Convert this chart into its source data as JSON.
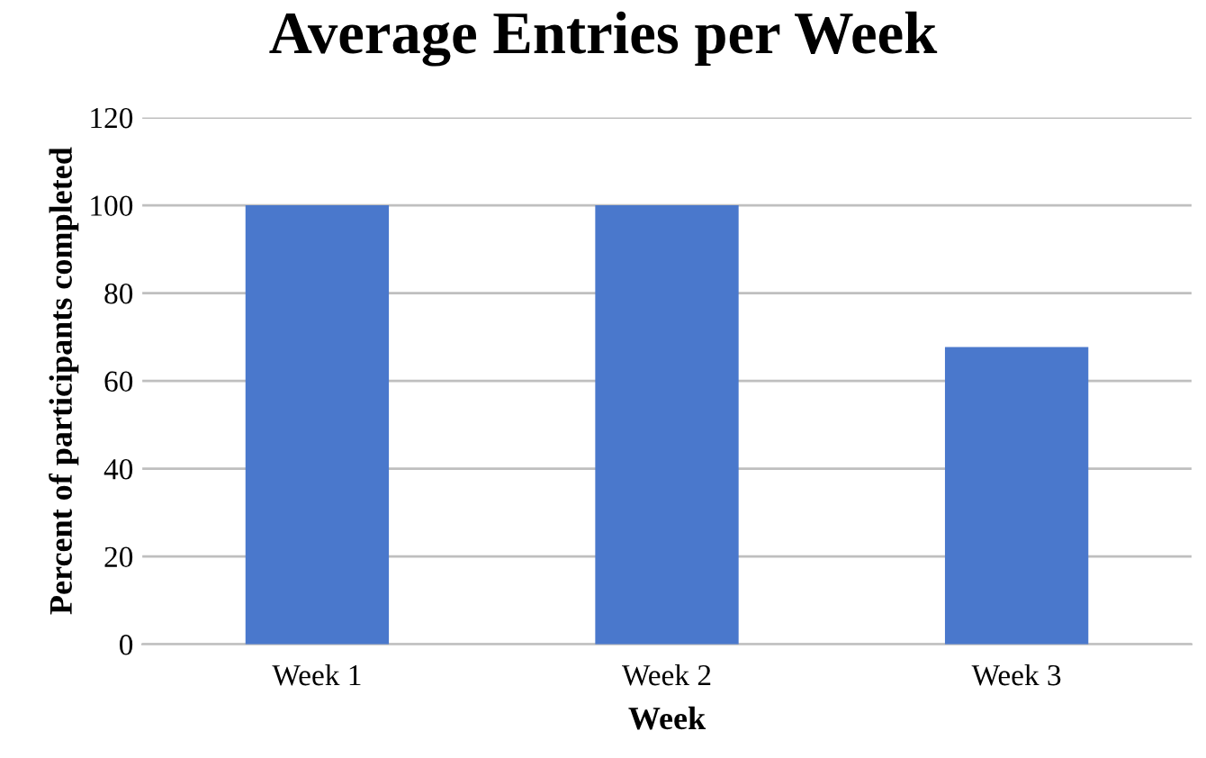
{
  "chart_data": {
    "type": "bar",
    "title": "Average Entries per Week",
    "xlabel": "Week",
    "ylabel": "Percent of participants completed",
    "categories": [
      "Week 1",
      "Week 2",
      "Week 3"
    ],
    "values": [
      100,
      100,
      67.7
    ],
    "color": "#4a78cc",
    "ylim": [
      0,
      120
    ],
    "yticks": [
      0,
      20,
      40,
      60,
      80,
      100,
      120
    ],
    "grid": "y",
    "legend": false
  }
}
